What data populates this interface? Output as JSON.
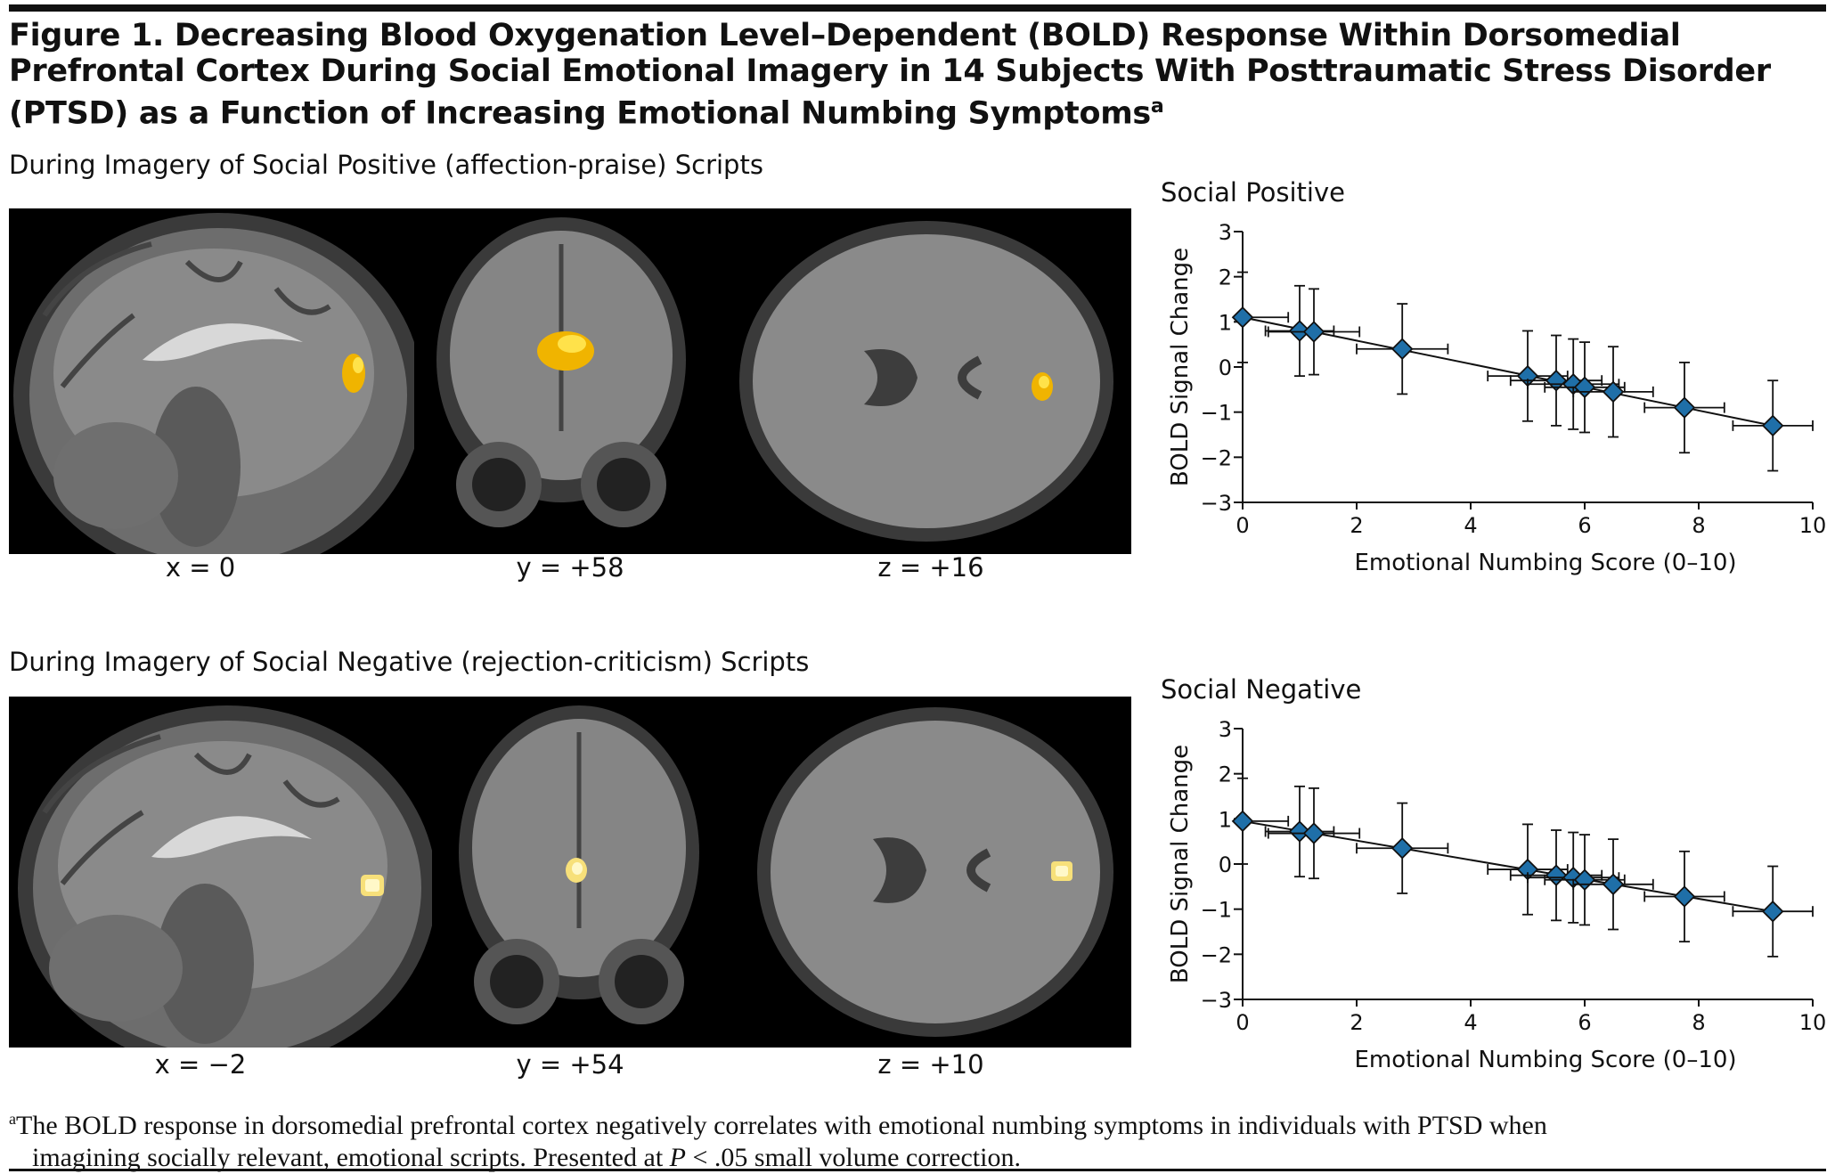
{
  "figure": {
    "title": "Figure 1. Decreasing Blood Oxygenation Level–Dependent (BOLD) Response Within Dorsomedial Prefrontal Cortex During Social Emotional Imagery in 14 Subjects With Posttraumatic Stress Disorder (PTSD) as a Function of Increasing Emotional Numbing Symptoms",
    "title_superscript": "a"
  },
  "panels": [
    {
      "heading": "During Imagery of Social Positive (affection-praise) Scripts",
      "coords": [
        "x = 0",
        "y = +58",
        "z = +16"
      ]
    },
    {
      "heading": "During Imagery of Social Negative (rejection-criticism) Scripts",
      "coords": [
        "x = −2",
        "y = +54",
        "z = +10"
      ]
    }
  ],
  "chart_data": [
    {
      "type": "scatter",
      "title": "Social Positive",
      "xlabel": "Emotional Numbing Score (0–10)",
      "ylabel": "BOLD Signal Change",
      "xlim": [
        0,
        10
      ],
      "ylim": [
        -3,
        3
      ],
      "xticks": [
        "0",
        "2",
        "4",
        "6",
        "8",
        "10"
      ],
      "yticks": [
        "3",
        "2",
        "1",
        "0",
        "−1",
        "−2",
        "−3"
      ],
      "marker": "diamond",
      "marker_color": "#1f6fa8",
      "points": [
        {
          "x": 0.0,
          "y": 1.1,
          "xerr": 0.8,
          "yerr": 1.0
        },
        {
          "x": 1.0,
          "y": 0.8,
          "xerr": 0.6,
          "yerr": 1.0
        },
        {
          "x": 1.25,
          "y": 0.78,
          "xerr": 0.8,
          "yerr": 0.95
        },
        {
          "x": 2.8,
          "y": 0.4,
          "xerr": 0.8,
          "yerr": 1.0
        },
        {
          "x": 5.0,
          "y": -0.2,
          "xerr": 0.7,
          "yerr": 1.0
        },
        {
          "x": 5.5,
          "y": -0.3,
          "xerr": 0.8,
          "yerr": 1.0
        },
        {
          "x": 5.8,
          "y": -0.38,
          "xerr": 0.8,
          "yerr": 1.0
        },
        {
          "x": 6.0,
          "y": -0.45,
          "xerr": 0.7,
          "yerr": 1.0
        },
        {
          "x": 6.5,
          "y": -0.55,
          "xerr": 0.7,
          "yerr": 1.0
        },
        {
          "x": 7.75,
          "y": -0.9,
          "xerr": 0.7,
          "yerr": 1.0
        },
        {
          "x": 9.3,
          "y": -1.3,
          "xerr": 0.7,
          "yerr": 1.0
        }
      ],
      "fit_line": {
        "x": [
          0,
          9.3
        ],
        "y": [
          1.1,
          -1.3
        ]
      }
    },
    {
      "type": "scatter",
      "title": "Social Negative",
      "xlabel": "Emotional Numbing Score (0–10)",
      "ylabel": "BOLD Signal Change",
      "xlim": [
        0,
        10
      ],
      "ylim": [
        -3,
        3
      ],
      "xticks": [
        "0",
        "2",
        "4",
        "6",
        "8",
        "10"
      ],
      "yticks": [
        "3",
        "2",
        "1",
        "0",
        "−1",
        "−2",
        "−3"
      ],
      "marker": "diamond",
      "marker_color": "#1f6fa8",
      "points": [
        {
          "x": 0.0,
          "y": 0.95,
          "xerr": 0.8,
          "yerr": 0.95
        },
        {
          "x": 1.0,
          "y": 0.72,
          "xerr": 0.6,
          "yerr": 1.0
        },
        {
          "x": 1.25,
          "y": 0.68,
          "xerr": 0.8,
          "yerr": 1.0
        },
        {
          "x": 2.8,
          "y": 0.35,
          "xerr": 0.8,
          "yerr": 1.0
        },
        {
          "x": 5.0,
          "y": -0.12,
          "xerr": 0.7,
          "yerr": 1.0
        },
        {
          "x": 5.5,
          "y": -0.25,
          "xerr": 0.8,
          "yerr": 1.0
        },
        {
          "x": 5.8,
          "y": -0.3,
          "xerr": 0.8,
          "yerr": 1.0
        },
        {
          "x": 6.0,
          "y": -0.35,
          "xerr": 0.7,
          "yerr": 1.0
        },
        {
          "x": 6.5,
          "y": -0.45,
          "xerr": 0.7,
          "yerr": 1.0
        },
        {
          "x": 7.75,
          "y": -0.72,
          "xerr": 0.7,
          "yerr": 1.0
        },
        {
          "x": 9.3,
          "y": -1.05,
          "xerr": 0.7,
          "yerr": 1.0
        }
      ],
      "fit_line": {
        "x": [
          0,
          9.3
        ],
        "y": [
          0.95,
          -1.05
        ]
      }
    }
  ],
  "footnote": {
    "marker": "a",
    "text_line1": "The BOLD response in dorsomedial prefrontal cortex negatively correlates with emotional numbing symptoms in individuals with PTSD when",
    "text_line2_prefix": "imagining socially relevant, emotional scripts. Presented at ",
    "p_symbol": "P",
    "text_line2_suffix": " < .05 small volume correction."
  }
}
